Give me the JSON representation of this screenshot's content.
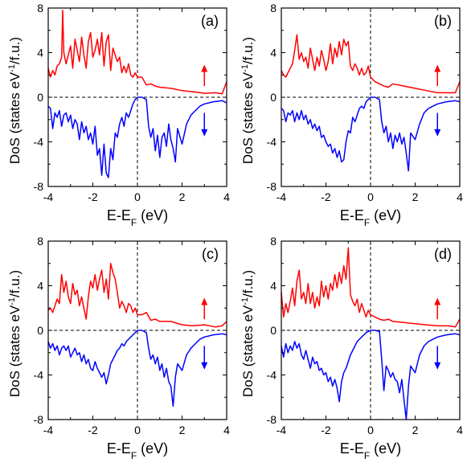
{
  "chart_data": [
    {
      "type": "line",
      "panel_label": "(a)",
      "ylabel_parts": [
        "DoS (states eV",
        "-1",
        "/f.u.)"
      ],
      "xlabel_parts": [
        "E-E",
        "F",
        " (eV)"
      ],
      "xlim": [
        -4,
        4
      ],
      "ylim": [
        -8,
        8
      ],
      "xticks": [
        "-4",
        "-2",
        "0",
        "2",
        "4"
      ],
      "yticks": [
        "-8",
        "-4",
        "0",
        "4",
        "8"
      ],
      "colors": {
        "up": "#ff0000",
        "down": "#0000ff"
      },
      "series": [
        {
          "x": [
            -4.0,
            -3.9,
            -3.8,
            -3.7,
            -3.6,
            -3.5,
            -3.4,
            -3.35,
            -3.3,
            -3.2,
            -3.1,
            -3.0,
            -2.9,
            -2.8,
            -2.7,
            -2.6,
            -2.5,
            -2.4,
            -2.3,
            -2.2,
            -2.1,
            -2.0,
            -1.9,
            -1.8,
            -1.7,
            -1.6,
            -1.5,
            -1.4,
            -1.3,
            -1.2,
            -1.1,
            -1.0,
            -0.9,
            -0.8,
            -0.7,
            -0.6,
            -0.5,
            -0.4,
            -0.3,
            -0.2,
            -0.1,
            0.0,
            0.2,
            0.4,
            0.6,
            0.8,
            1.0,
            1.5,
            2.0,
            2.5,
            3.0,
            3.5,
            3.8,
            4.0
          ],
          "values": [
            2.6,
            1.8,
            2.4,
            2.0,
            2.8,
            3.0,
            3.6,
            7.8,
            4.0,
            3.0,
            3.8,
            4.6,
            2.6,
            5.2,
            4.2,
            3.2,
            5.4,
            3.8,
            2.6,
            5.0,
            5.8,
            3.6,
            4.2,
            5.2,
            3.8,
            5.8,
            2.8,
            5.0,
            5.6,
            2.4,
            4.4,
            3.8,
            3.2,
            3.6,
            2.2,
            2.8,
            2.2,
            3.0,
            2.0,
            1.8,
            2.2,
            1.8,
            1.8,
            1.1,
            1.2,
            1.0,
            0.9,
            0.8,
            0.6,
            0.5,
            0.35,
            0.4,
            0.3,
            1.4
          ]
        },
        {
          "x": [
            -4.0,
            -3.9,
            -3.8,
            -3.7,
            -3.6,
            -3.5,
            -3.4,
            -3.3,
            -3.2,
            -3.1,
            -3.0,
            -2.9,
            -2.8,
            -2.7,
            -2.6,
            -2.5,
            -2.4,
            -2.3,
            -2.2,
            -2.1,
            -2.0,
            -1.9,
            -1.8,
            -1.7,
            -1.6,
            -1.5,
            -1.4,
            -1.3,
            -1.2,
            -1.1,
            -1.0,
            -0.9,
            -0.8,
            -0.7,
            -0.6,
            -0.5,
            -0.4,
            -0.3,
            -0.2,
            -0.1,
            0.0,
            0.2,
            0.4,
            0.5,
            0.6,
            0.7,
            0.8,
            0.9,
            1.0,
            1.1,
            1.2,
            1.3,
            1.4,
            1.5,
            1.6,
            1.7,
            1.8,
            2.0,
            2.2,
            2.4,
            2.6,
            2.8,
            3.0,
            3.4,
            3.8,
            4.0
          ],
          "values": [
            -0.8,
            -1.0,
            -2.8,
            -1.4,
            -1.8,
            -1.2,
            -2.6,
            -1.6,
            -1.4,
            -2.2,
            -1.6,
            -2.8,
            -2.0,
            -2.4,
            -3.8,
            -2.2,
            -3.2,
            -2.6,
            -3.8,
            -3.2,
            -4.2,
            -2.6,
            -5.2,
            -4.6,
            -7.0,
            -4.2,
            -6.8,
            -7.2,
            -4.6,
            -5.6,
            -3.2,
            -3.6,
            -2.4,
            -1.8,
            -2.6,
            -1.4,
            -1.8,
            -1.2,
            -0.6,
            -0.2,
            0.0,
            0.0,
            -0.2,
            -2.6,
            -3.6,
            -2.8,
            -4.8,
            -3.4,
            -5.4,
            -3.6,
            -3.2,
            -4.4,
            -2.4,
            -3.8,
            -4.6,
            -5.8,
            -2.8,
            -4.2,
            -2.4,
            -1.6,
            -1.2,
            -0.8,
            -0.6,
            -0.4,
            -0.3,
            -0.5
          ]
        }
      ]
    },
    {
      "type": "line",
      "panel_label": "(b)",
      "ylabel_parts": [
        "DoS (states eV",
        "-1",
        "/f.u.)"
      ],
      "xlabel_parts": [
        "E-E",
        "F",
        " (eV)"
      ],
      "xlim": [
        -4,
        4
      ],
      "ylim": [
        -8,
        8
      ],
      "xticks": [
        "-4",
        "-2",
        "0",
        "2",
        "4"
      ],
      "yticks": [
        "-8",
        "-4",
        "0",
        "4",
        "8"
      ],
      "colors": {
        "up": "#ff0000",
        "down": "#0000ff"
      },
      "series": [
        {
          "x": [
            -4.0,
            -3.9,
            -3.8,
            -3.7,
            -3.6,
            -3.5,
            -3.4,
            -3.3,
            -3.2,
            -3.1,
            -3.0,
            -2.9,
            -2.8,
            -2.7,
            -2.6,
            -2.5,
            -2.4,
            -2.3,
            -2.2,
            -2.1,
            -2.0,
            -1.9,
            -1.8,
            -1.7,
            -1.6,
            -1.5,
            -1.4,
            -1.3,
            -1.2,
            -1.1,
            -1.0,
            -0.9,
            -0.8,
            -0.7,
            -0.6,
            -0.5,
            -0.4,
            -0.3,
            -0.2,
            -0.1,
            0.0,
            0.2,
            0.4,
            0.6,
            0.8,
            1.0,
            1.5,
            2.0,
            2.5,
            3.0,
            3.5,
            3.8,
            4.0
          ],
          "values": [
            2.4,
            2.0,
            1.8,
            2.2,
            2.6,
            3.0,
            4.2,
            5.6,
            3.4,
            4.0,
            3.2,
            3.6,
            2.6,
            4.4,
            3.4,
            2.4,
            3.6,
            2.8,
            4.2,
            3.4,
            2.4,
            3.2,
            4.8,
            3.0,
            4.4,
            3.6,
            5.0,
            3.8,
            5.2,
            4.6,
            5.0,
            2.8,
            2.4,
            3.0,
            2.6,
            2.0,
            2.6,
            2.0,
            2.2,
            2.8,
            1.8,
            1.4,
            1.2,
            1.0,
            0.9,
            1.2,
            1.0,
            0.8,
            0.6,
            0.4,
            0.4,
            0.4,
            1.4
          ]
        },
        {
          "x": [
            -4.0,
            -3.9,
            -3.8,
            -3.7,
            -3.6,
            -3.5,
            -3.4,
            -3.3,
            -3.2,
            -3.1,
            -3.0,
            -2.9,
            -2.8,
            -2.7,
            -2.6,
            -2.5,
            -2.4,
            -2.3,
            -2.2,
            -2.1,
            -2.0,
            -1.9,
            -1.8,
            -1.7,
            -1.6,
            -1.5,
            -1.4,
            -1.3,
            -1.2,
            -1.1,
            -1.0,
            -0.9,
            -0.8,
            -0.7,
            -0.6,
            -0.5,
            -0.4,
            -0.3,
            -0.2,
            -0.1,
            0.0,
            0.2,
            0.4,
            0.5,
            0.6,
            0.7,
            0.8,
            0.9,
            1.0,
            1.1,
            1.2,
            1.3,
            1.4,
            1.5,
            1.6,
            1.7,
            1.8,
            2.0,
            2.2,
            2.4,
            2.6,
            2.8,
            3.0,
            3.4,
            3.8,
            4.0
          ],
          "values": [
            -1.0,
            -1.2,
            -2.2,
            -1.4,
            -1.6,
            -1.2,
            -2.2,
            -1.4,
            -2.0,
            -1.2,
            -2.0,
            -1.6,
            -2.4,
            -2.0,
            -2.8,
            -2.4,
            -3.0,
            -2.6,
            -3.6,
            -3.4,
            -4.0,
            -4.4,
            -4.2,
            -5.0,
            -4.6,
            -5.4,
            -4.8,
            -5.8,
            -5.6,
            -4.0,
            -3.0,
            -3.2,
            -1.8,
            -2.2,
            -1.6,
            -1.0,
            -0.8,
            -1.0,
            -0.4,
            -0.2,
            0.0,
            0.0,
            -0.2,
            -2.2,
            -3.2,
            -2.6,
            -4.0,
            -3.2,
            -4.6,
            -3.4,
            -4.0,
            -3.2,
            -4.2,
            -3.6,
            -5.0,
            -6.6,
            -3.2,
            -3.8,
            -2.4,
            -1.4,
            -1.0,
            -0.8,
            -0.6,
            -0.4,
            -0.3,
            -0.4
          ]
        }
      ]
    },
    {
      "type": "line",
      "panel_label": "(c)",
      "ylabel_parts": [
        "DoS (states eV",
        "-1",
        "/f.u.)"
      ],
      "xlabel_parts": [
        "E-E",
        "F",
        " (eV)"
      ],
      "xlim": [
        -4,
        4
      ],
      "ylim": [
        -8,
        8
      ],
      "xticks": [
        "-4",
        "-2",
        "0",
        "2",
        "4"
      ],
      "yticks": [
        "-8",
        "-4",
        "0",
        "4",
        "8"
      ],
      "colors": {
        "up": "#ff0000",
        "down": "#0000ff"
      },
      "series": [
        {
          "x": [
            -4.0,
            -3.9,
            -3.8,
            -3.7,
            -3.6,
            -3.5,
            -3.4,
            -3.3,
            -3.2,
            -3.1,
            -3.0,
            -2.9,
            -2.8,
            -2.7,
            -2.6,
            -2.5,
            -2.4,
            -2.3,
            -2.2,
            -2.1,
            -2.0,
            -1.9,
            -1.8,
            -1.7,
            -1.6,
            -1.5,
            -1.4,
            -1.3,
            -1.2,
            -1.1,
            -1.0,
            -0.9,
            -0.8,
            -0.7,
            -0.6,
            -0.5,
            -0.4,
            -0.3,
            -0.2,
            -0.1,
            0.0,
            0.2,
            0.4,
            0.6,
            0.8,
            1.0,
            1.5,
            2.0,
            2.5,
            3.0,
            3.5,
            3.8,
            4.0
          ],
          "values": [
            1.8,
            2.0,
            1.6,
            2.2,
            2.8,
            2.4,
            5.0,
            3.4,
            4.4,
            3.0,
            2.4,
            4.2,
            3.2,
            3.6,
            2.2,
            3.0,
            2.0,
            1.0,
            3.0,
            4.4,
            3.8,
            5.0,
            3.6,
            4.6,
            5.4,
            3.4,
            4.6,
            2.8,
            6.0,
            5.2,
            4.6,
            3.4,
            2.0,
            2.6,
            2.2,
            1.6,
            2.4,
            2.2,
            1.6,
            2.0,
            1.4,
            1.4,
            1.6,
            0.9,
            1.0,
            0.8,
            0.8,
            0.5,
            0.4,
            0.5,
            0.3,
            0.4,
            0.8
          ]
        },
        {
          "x": [
            -4.0,
            -3.9,
            -3.8,
            -3.7,
            -3.6,
            -3.5,
            -3.4,
            -3.3,
            -3.2,
            -3.1,
            -3.0,
            -2.9,
            -2.8,
            -2.7,
            -2.6,
            -2.5,
            -2.4,
            -2.3,
            -2.2,
            -2.1,
            -2.0,
            -1.9,
            -1.8,
            -1.7,
            -1.6,
            -1.5,
            -1.4,
            -1.3,
            -1.2,
            -1.1,
            -1.0,
            -0.9,
            -0.8,
            -0.7,
            -0.6,
            -0.5,
            -0.4,
            -0.3,
            -0.2,
            -0.1,
            0.0,
            0.2,
            0.4,
            0.5,
            0.6,
            0.7,
            0.8,
            0.9,
            1.0,
            1.1,
            1.2,
            1.3,
            1.4,
            1.5,
            1.6,
            1.7,
            1.8,
            2.0,
            2.2,
            2.4,
            2.6,
            2.8,
            3.0,
            3.4,
            3.8,
            4.0
          ],
          "values": [
            -1.0,
            -1.6,
            -1.2,
            -1.8,
            -1.4,
            -2.2,
            -1.6,
            -1.4,
            -1.8,
            -1.4,
            -2.4,
            -2.0,
            -1.6,
            -2.2,
            -2.0,
            -2.8,
            -2.2,
            -3.0,
            -2.6,
            -3.4,
            -3.6,
            -2.8,
            -3.4,
            -3.8,
            -4.2,
            -3.8,
            -4.8,
            -4.0,
            -3.0,
            -2.6,
            -2.2,
            -1.8,
            -1.6,
            -1.2,
            -1.4,
            -1.0,
            -0.8,
            -0.6,
            -0.4,
            -0.2,
            0.0,
            0.0,
            -0.2,
            -1.6,
            -2.6,
            -2.2,
            -3.0,
            -2.4,
            -3.6,
            -3.0,
            -4.2,
            -3.4,
            -4.6,
            -5.0,
            -6.8,
            -4.2,
            -3.0,
            -3.6,
            -2.2,
            -1.6,
            -1.2,
            -0.8,
            -0.6,
            -0.4,
            -0.3,
            -0.4
          ]
        }
      ]
    },
    {
      "type": "line",
      "panel_label": "(d)",
      "ylabel_parts": [
        "DoS (states eV",
        "-1",
        "/f.u.)"
      ],
      "xlabel_parts": [
        "E-E",
        "F",
        " (eV)"
      ],
      "xlim": [
        -4,
        4
      ],
      "ylim": [
        -8,
        8
      ],
      "xticks": [
        "-4",
        "-2",
        "0",
        "2",
        "4"
      ],
      "yticks": [
        "-8",
        "-4",
        "0",
        "4",
        "8"
      ],
      "colors": {
        "up": "#ff0000",
        "down": "#0000ff"
      },
      "series": [
        {
          "x": [
            -4.0,
            -3.9,
            -3.8,
            -3.7,
            -3.6,
            -3.5,
            -3.4,
            -3.3,
            -3.2,
            -3.1,
            -3.0,
            -2.9,
            -2.8,
            -2.7,
            -2.6,
            -2.5,
            -2.4,
            -2.3,
            -2.2,
            -2.1,
            -2.0,
            -1.9,
            -1.8,
            -1.7,
            -1.6,
            -1.5,
            -1.4,
            -1.3,
            -1.2,
            -1.1,
            -1.0,
            -0.9,
            -0.8,
            -0.7,
            -0.6,
            -0.5,
            -0.4,
            -0.3,
            -0.2,
            -0.1,
            0.0,
            0.2,
            0.4,
            0.6,
            0.8,
            1.0,
            1.5,
            2.0,
            2.5,
            3.0,
            3.5,
            3.8,
            4.0
          ],
          "values": [
            3.4,
            1.2,
            2.4,
            1.6,
            2.6,
            3.8,
            2.2,
            4.4,
            5.4,
            2.8,
            3.4,
            2.4,
            4.2,
            2.4,
            3.4,
            2.0,
            3.0,
            2.2,
            4.4,
            3.0,
            4.0,
            2.8,
            4.2,
            3.6,
            5.0,
            3.8,
            5.2,
            4.2,
            5.8,
            4.6,
            7.4,
            3.2,
            2.6,
            2.2,
            2.8,
            1.6,
            2.4,
            1.8,
            1.2,
            1.8,
            1.4,
            1.2,
            1.0,
            0.9,
            1.0,
            0.8,
            0.7,
            0.6,
            0.5,
            0.4,
            0.4,
            0.3,
            1.0
          ]
        },
        {
          "x": [
            -4.0,
            -3.9,
            -3.8,
            -3.7,
            -3.6,
            -3.5,
            -3.4,
            -3.3,
            -3.2,
            -3.1,
            -3.0,
            -2.9,
            -2.8,
            -2.7,
            -2.6,
            -2.5,
            -2.4,
            -2.3,
            -2.2,
            -2.1,
            -2.0,
            -1.9,
            -1.8,
            -1.7,
            -1.6,
            -1.5,
            -1.4,
            -1.3,
            -1.2,
            -1.1,
            -1.0,
            -0.9,
            -0.8,
            -0.7,
            -0.6,
            -0.5,
            -0.4,
            -0.3,
            -0.2,
            -0.1,
            0.0,
            0.2,
            0.4,
            0.5,
            0.6,
            0.7,
            0.8,
            0.9,
            1.0,
            1.1,
            1.2,
            1.3,
            1.4,
            1.5,
            1.6,
            1.7,
            1.8,
            2.0,
            2.2,
            2.4,
            2.6,
            2.8,
            3.0,
            3.4,
            3.8,
            4.0
          ],
          "values": [
            -1.4,
            -2.4,
            -1.2,
            -2.0,
            -1.4,
            -1.8,
            -1.0,
            -1.6,
            -1.2,
            -2.2,
            -2.6,
            -1.8,
            -2.6,
            -3.4,
            -2.4,
            -3.0,
            -2.8,
            -3.6,
            -3.4,
            -4.0,
            -3.8,
            -4.6,
            -4.2,
            -5.0,
            -4.4,
            -5.2,
            -6.4,
            -4.6,
            -3.8,
            -3.4,
            -2.8,
            -2.2,
            -1.8,
            -1.4,
            -1.0,
            -0.8,
            -0.6,
            -0.4,
            -0.2,
            -0.1,
            0.0,
            0.0,
            -0.1,
            -2.6,
            -5.4,
            -3.2,
            -3.6,
            -4.2,
            -3.8,
            -4.4,
            -4.6,
            -5.6,
            -4.4,
            -6.2,
            -8.0,
            -5.0,
            -3.2,
            -3.8,
            -2.2,
            -1.4,
            -1.0,
            -0.8,
            -0.6,
            -0.4,
            -0.3,
            -0.4
          ]
        }
      ]
    }
  ]
}
